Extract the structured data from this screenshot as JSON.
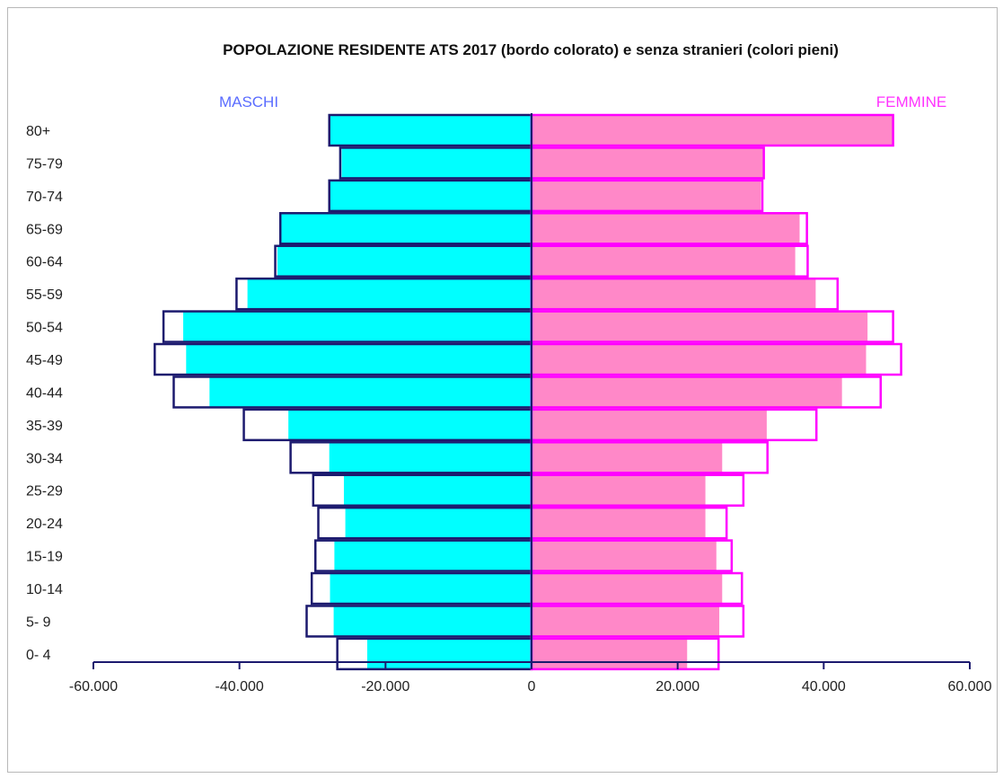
{
  "chart_data": {
    "type": "bar",
    "title": "POPOLAZIONE  RESIDENTE  ATS 2017  (bordo colorato) e senza stranieri (colori pieni)",
    "left_label": "MASCHI",
    "right_label": "FEMMINE",
    "categories": [
      "80+",
      "75-79",
      "70-74",
      "65-69",
      "60-64",
      "55-59",
      "50-54",
      "45-49",
      "40-44",
      "35-39",
      "30-34",
      "25-29",
      "20-24",
      "15-19",
      "10-14",
      "5- 9",
      "0- 4"
    ],
    "xlim": [
      -60000,
      60000
    ],
    "x_ticks": [
      -60000,
      -40000,
      -20000,
      0,
      20000,
      40000,
      60000
    ],
    "x_tick_labels": [
      "-60.000",
      "-40.000",
      "-20.000",
      "0",
      "20.000",
      "40.000",
      "60.000"
    ],
    "series": [
      {
        "name": "MASCHI",
        "values": [
          -27700,
          -26200,
          -27700,
          -34400,
          -35100,
          -40400,
          -50400,
          -51600,
          -49000,
          -39400,
          -33000,
          -29900,
          -29200,
          -29600,
          -30100,
          -30800,
          -26600
        ]
      },
      {
        "name": "MASCHI",
        "values": [
          -27700,
          -26000,
          -27700,
          -34300,
          -34800,
          -38900,
          -47700,
          -47300,
          -44100,
          -33300,
          -27700,
          -25700,
          -25500,
          -27000,
          -27600,
          -27100,
          -22500
        ]
      },
      {
        "name": "FEMMINE",
        "values": [
          49500,
          31800,
          31600,
          37700,
          37800,
          41900,
          49500,
          50600,
          47800,
          39000,
          32300,
          29000,
          26700,
          27400,
          28800,
          29000,
          25600
        ]
      },
      {
        "name": "FEMMINE",
        "values": [
          49500,
          31700,
          31400,
          36700,
          36100,
          38900,
          46000,
          45800,
          42500,
          32200,
          26100,
          23800,
          23800,
          25300,
          26100,
          25700,
          21300
        ]
      }
    ],
    "colors": {
      "male_fill": "#00ffff",
      "male_border": "#1c1a6e",
      "female_fill": "#ff88c8",
      "female_border": "#ff00ff",
      "axis": "#1c1a6e",
      "left_label": "#5a6cff",
      "right_label": "#ff33ff"
    },
    "grid": false,
    "legend": "none"
  }
}
